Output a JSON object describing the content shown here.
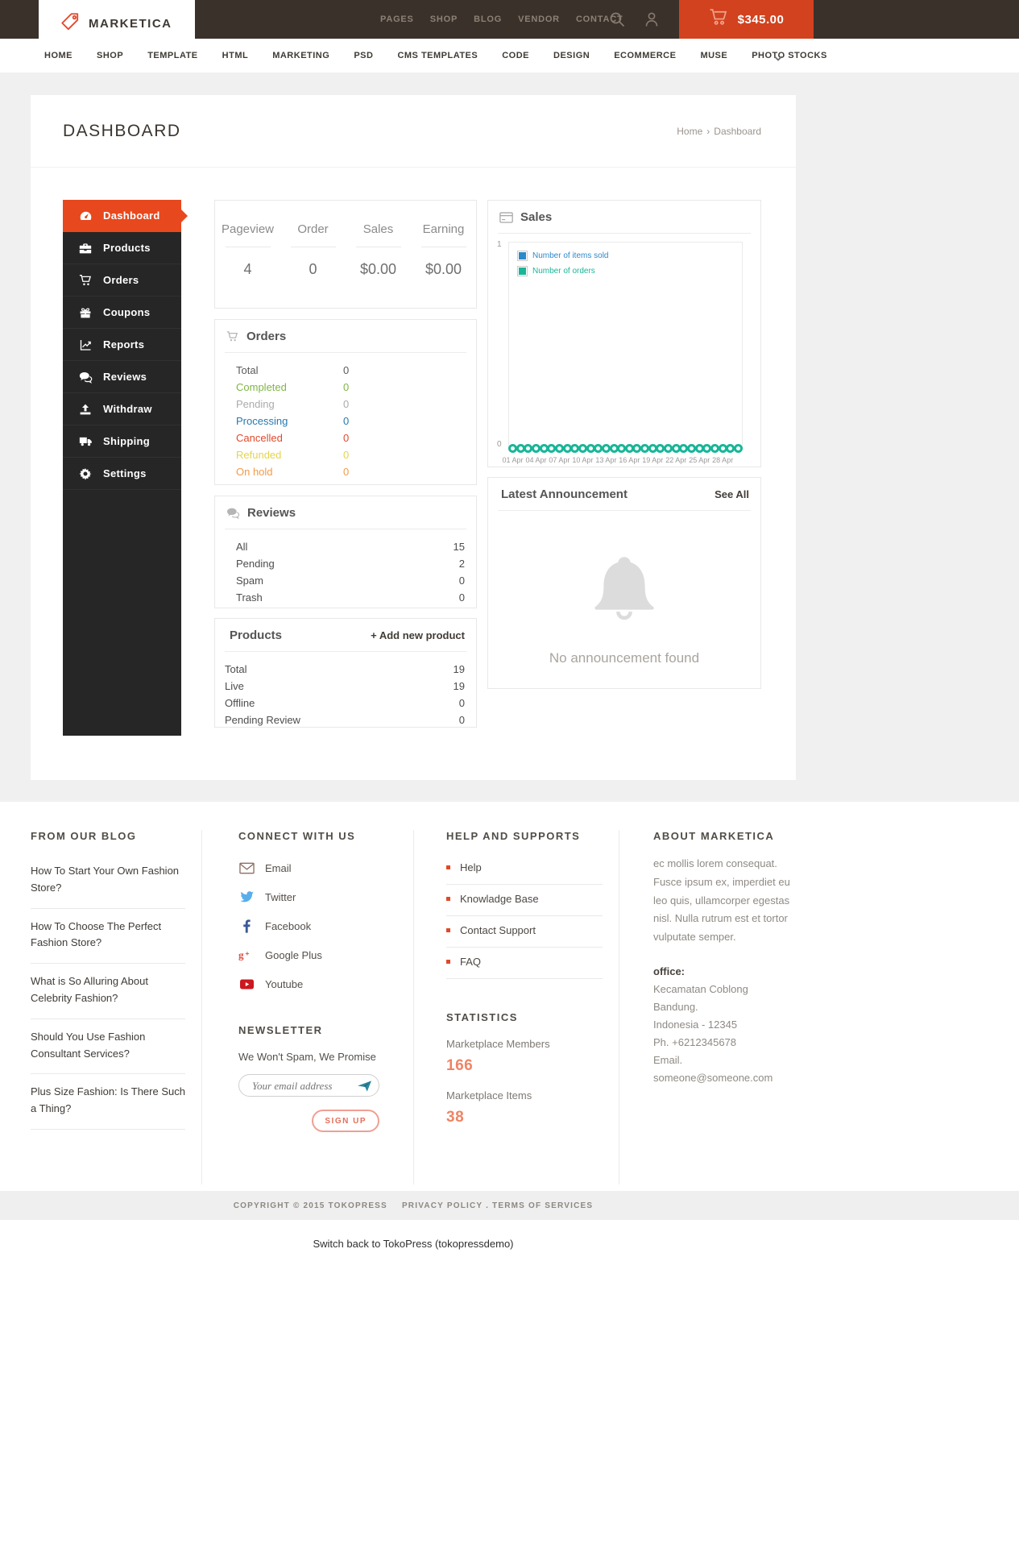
{
  "header": {
    "brand": "MARKETICA",
    "nav": [
      "PAGES",
      "SHOP",
      "BLOG",
      "VENDOR",
      "CONTACT"
    ],
    "cart_total": "$345.00"
  },
  "main_nav": {
    "items": [
      "HOME",
      "SHOP",
      "TEMPLATE",
      "HTML",
      "MARKETING",
      "PSD",
      "CMS TEMPLATES",
      "CODE",
      "DESIGN",
      "ECOMMERCE",
      "MUSE",
      "PHOTO STOCKS"
    ]
  },
  "page": {
    "title": "DASHBOARD",
    "breadcrumb_home": "Home",
    "breadcrumb_sep": "›",
    "breadcrumb_current": "Dashboard"
  },
  "sidebar": {
    "items": [
      {
        "label": "Dashboard",
        "icon": "gauge",
        "active": true
      },
      {
        "label": "Products",
        "icon": "briefcase"
      },
      {
        "label": "Orders",
        "icon": "cart"
      },
      {
        "label": "Coupons",
        "icon": "gift"
      },
      {
        "label": "Reports",
        "icon": "chart-line"
      },
      {
        "label": "Reviews",
        "icon": "comments"
      },
      {
        "label": "Withdraw",
        "icon": "upload"
      },
      {
        "label": "Shipping",
        "icon": "truck"
      },
      {
        "label": "Settings",
        "icon": "gear"
      }
    ]
  },
  "stats": {
    "items": [
      {
        "label": "Pageview",
        "value": "4"
      },
      {
        "label": "Order",
        "value": "0"
      },
      {
        "label": "Sales",
        "value": "$0.00"
      },
      {
        "label": "Earning",
        "value": "$0.00"
      }
    ]
  },
  "orders_panel": {
    "title": "Orders",
    "rows": [
      {
        "label": "Total",
        "value": "0",
        "color": "#5a5a5a"
      },
      {
        "label": "Completed",
        "value": "0",
        "color": "#7eb642"
      },
      {
        "label": "Pending",
        "value": "0",
        "color": "#ababab"
      },
      {
        "label": "Processing",
        "value": "0",
        "color": "#2779ae"
      },
      {
        "label": "Cancelled",
        "value": "0",
        "color": "#e2492a"
      },
      {
        "label": "Refunded",
        "value": "0",
        "color": "#e5d44c"
      },
      {
        "label": "On hold",
        "value": "0",
        "color": "#f39a46"
      }
    ]
  },
  "sales_panel": {
    "title": "Sales"
  },
  "reviews_panel": {
    "title": "Reviews",
    "rows": [
      {
        "label": "All",
        "value": "15"
      },
      {
        "label": "Pending",
        "value": "2"
      },
      {
        "label": "Spam",
        "value": "0"
      },
      {
        "label": "Trash",
        "value": "0"
      }
    ]
  },
  "products_panel": {
    "title": "Products",
    "action": "+ Add new product",
    "rows": [
      {
        "label": "Total",
        "value": "19"
      },
      {
        "label": "Live",
        "value": "19"
      },
      {
        "label": "Offline",
        "value": "0"
      },
      {
        "label": "Pending Review",
        "value": "0"
      }
    ]
  },
  "announcement_panel": {
    "title": "Latest Announcement",
    "action": "See All",
    "empty_text": "No announcement found"
  },
  "chart_data": {
    "type": "line",
    "title": "Sales",
    "x": [
      "01 Apr",
      "02 Apr",
      "03 Apr",
      "04 Apr",
      "05 Apr",
      "06 Apr",
      "07 Apr",
      "08 Apr",
      "09 Apr",
      "10 Apr",
      "11 Apr",
      "12 Apr",
      "13 Apr",
      "14 Apr",
      "15 Apr",
      "16 Apr",
      "17 Apr",
      "18 Apr",
      "19 Apr",
      "20 Apr",
      "21 Apr",
      "22 Apr",
      "23 Apr",
      "24 Apr",
      "25 Apr",
      "26 Apr",
      "27 Apr",
      "28 Apr",
      "29 Apr",
      "30 Apr"
    ],
    "series": [
      {
        "name": "Number of items sold",
        "color": "#2e89c9",
        "values": [
          0,
          0,
          0,
          0,
          0,
          0,
          0,
          0,
          0,
          0,
          0,
          0,
          0,
          0,
          0,
          0,
          0,
          0,
          0,
          0,
          0,
          0,
          0,
          0,
          0,
          0,
          0,
          0,
          0,
          0
        ]
      },
      {
        "name": "Number of orders",
        "color": "#19b698",
        "values": [
          0,
          0,
          0,
          0,
          0,
          0,
          0,
          0,
          0,
          0,
          0,
          0,
          0,
          0,
          0,
          0,
          0,
          0,
          0,
          0,
          0,
          0,
          0,
          0,
          0,
          0,
          0,
          0,
          0,
          0
        ]
      }
    ],
    "ylim": [
      0,
      1
    ],
    "yticks": [
      "0",
      "1"
    ],
    "xticklabels": [
      "01 Apr",
      "04 Apr",
      "07 Apr",
      "10 Apr",
      "13 Apr",
      "16 Apr",
      "19 Apr",
      "22 Apr",
      "25 Apr",
      "28 Apr"
    ],
    "legend_position": "top-left-inside",
    "grid": false
  },
  "footer": {
    "blog": {
      "heading": "FROM OUR BLOG",
      "posts": [
        "How To Start Your Own Fashion Store?",
        "How To Choose The Perfect Fashion Store?",
        "What is So Alluring About Celebrity Fashion?",
        "Should You Use Fashion Consultant Services?",
        "Plus Size Fashion: Is There Such a Thing?"
      ]
    },
    "connect": {
      "heading": "CONNECT WITH US",
      "links": [
        {
          "label": "Email",
          "icon": "envelope"
        },
        {
          "label": "Twitter",
          "icon": "twitter"
        },
        {
          "label": "Facebook",
          "icon": "facebook"
        },
        {
          "label": "Google Plus",
          "icon": "gplus"
        },
        {
          "label": "Youtube",
          "icon": "youtube"
        }
      ]
    },
    "newsletter": {
      "heading": "NEWSLETTER",
      "note": "We Won't Spam, We Promise",
      "placeholder": "Your email address",
      "button": "SIGN UP"
    },
    "help": {
      "heading": "HELP AND SUPPORTS",
      "items": [
        "Help",
        "Knowladge Base",
        "Contact Support",
        "FAQ"
      ]
    },
    "statistics": {
      "heading": "STATISTICS",
      "stats": [
        {
          "label": "Marketplace Members",
          "value": "166"
        },
        {
          "label": "Marketplace Items",
          "value": "38"
        }
      ]
    },
    "about": {
      "heading": "ABOUT MARKETICA",
      "text": "ec mollis lorem consequat. Fusce ipsum ex, imperdiet eu leo quis, ullamcorper egestas nisl. Nulla rutrum est et tortor vulputate semper.",
      "office_label": "office:",
      "office_lines": [
        "Kecamatan Coblong",
        "Bandung.",
        "Indonesia - 12345",
        "Ph. +6212345678",
        "Email. someone@someone.com"
      ]
    }
  },
  "copyright": {
    "text": "COPYRIGHT © 2015 TOKOPRESS",
    "links": "PRIVACY POLICY . TERMS OF SERVICES"
  },
  "admin_bar": {
    "text": "Switch back to TokoPress (tokopressdemo)"
  },
  "colors": {
    "accent": "#e8481d",
    "cart_orange": "#d2421e",
    "teal": "#19b698",
    "legend_blue": "#2e89c9",
    "salmon": "#ef8464",
    "header_brown": "#3a312b"
  }
}
